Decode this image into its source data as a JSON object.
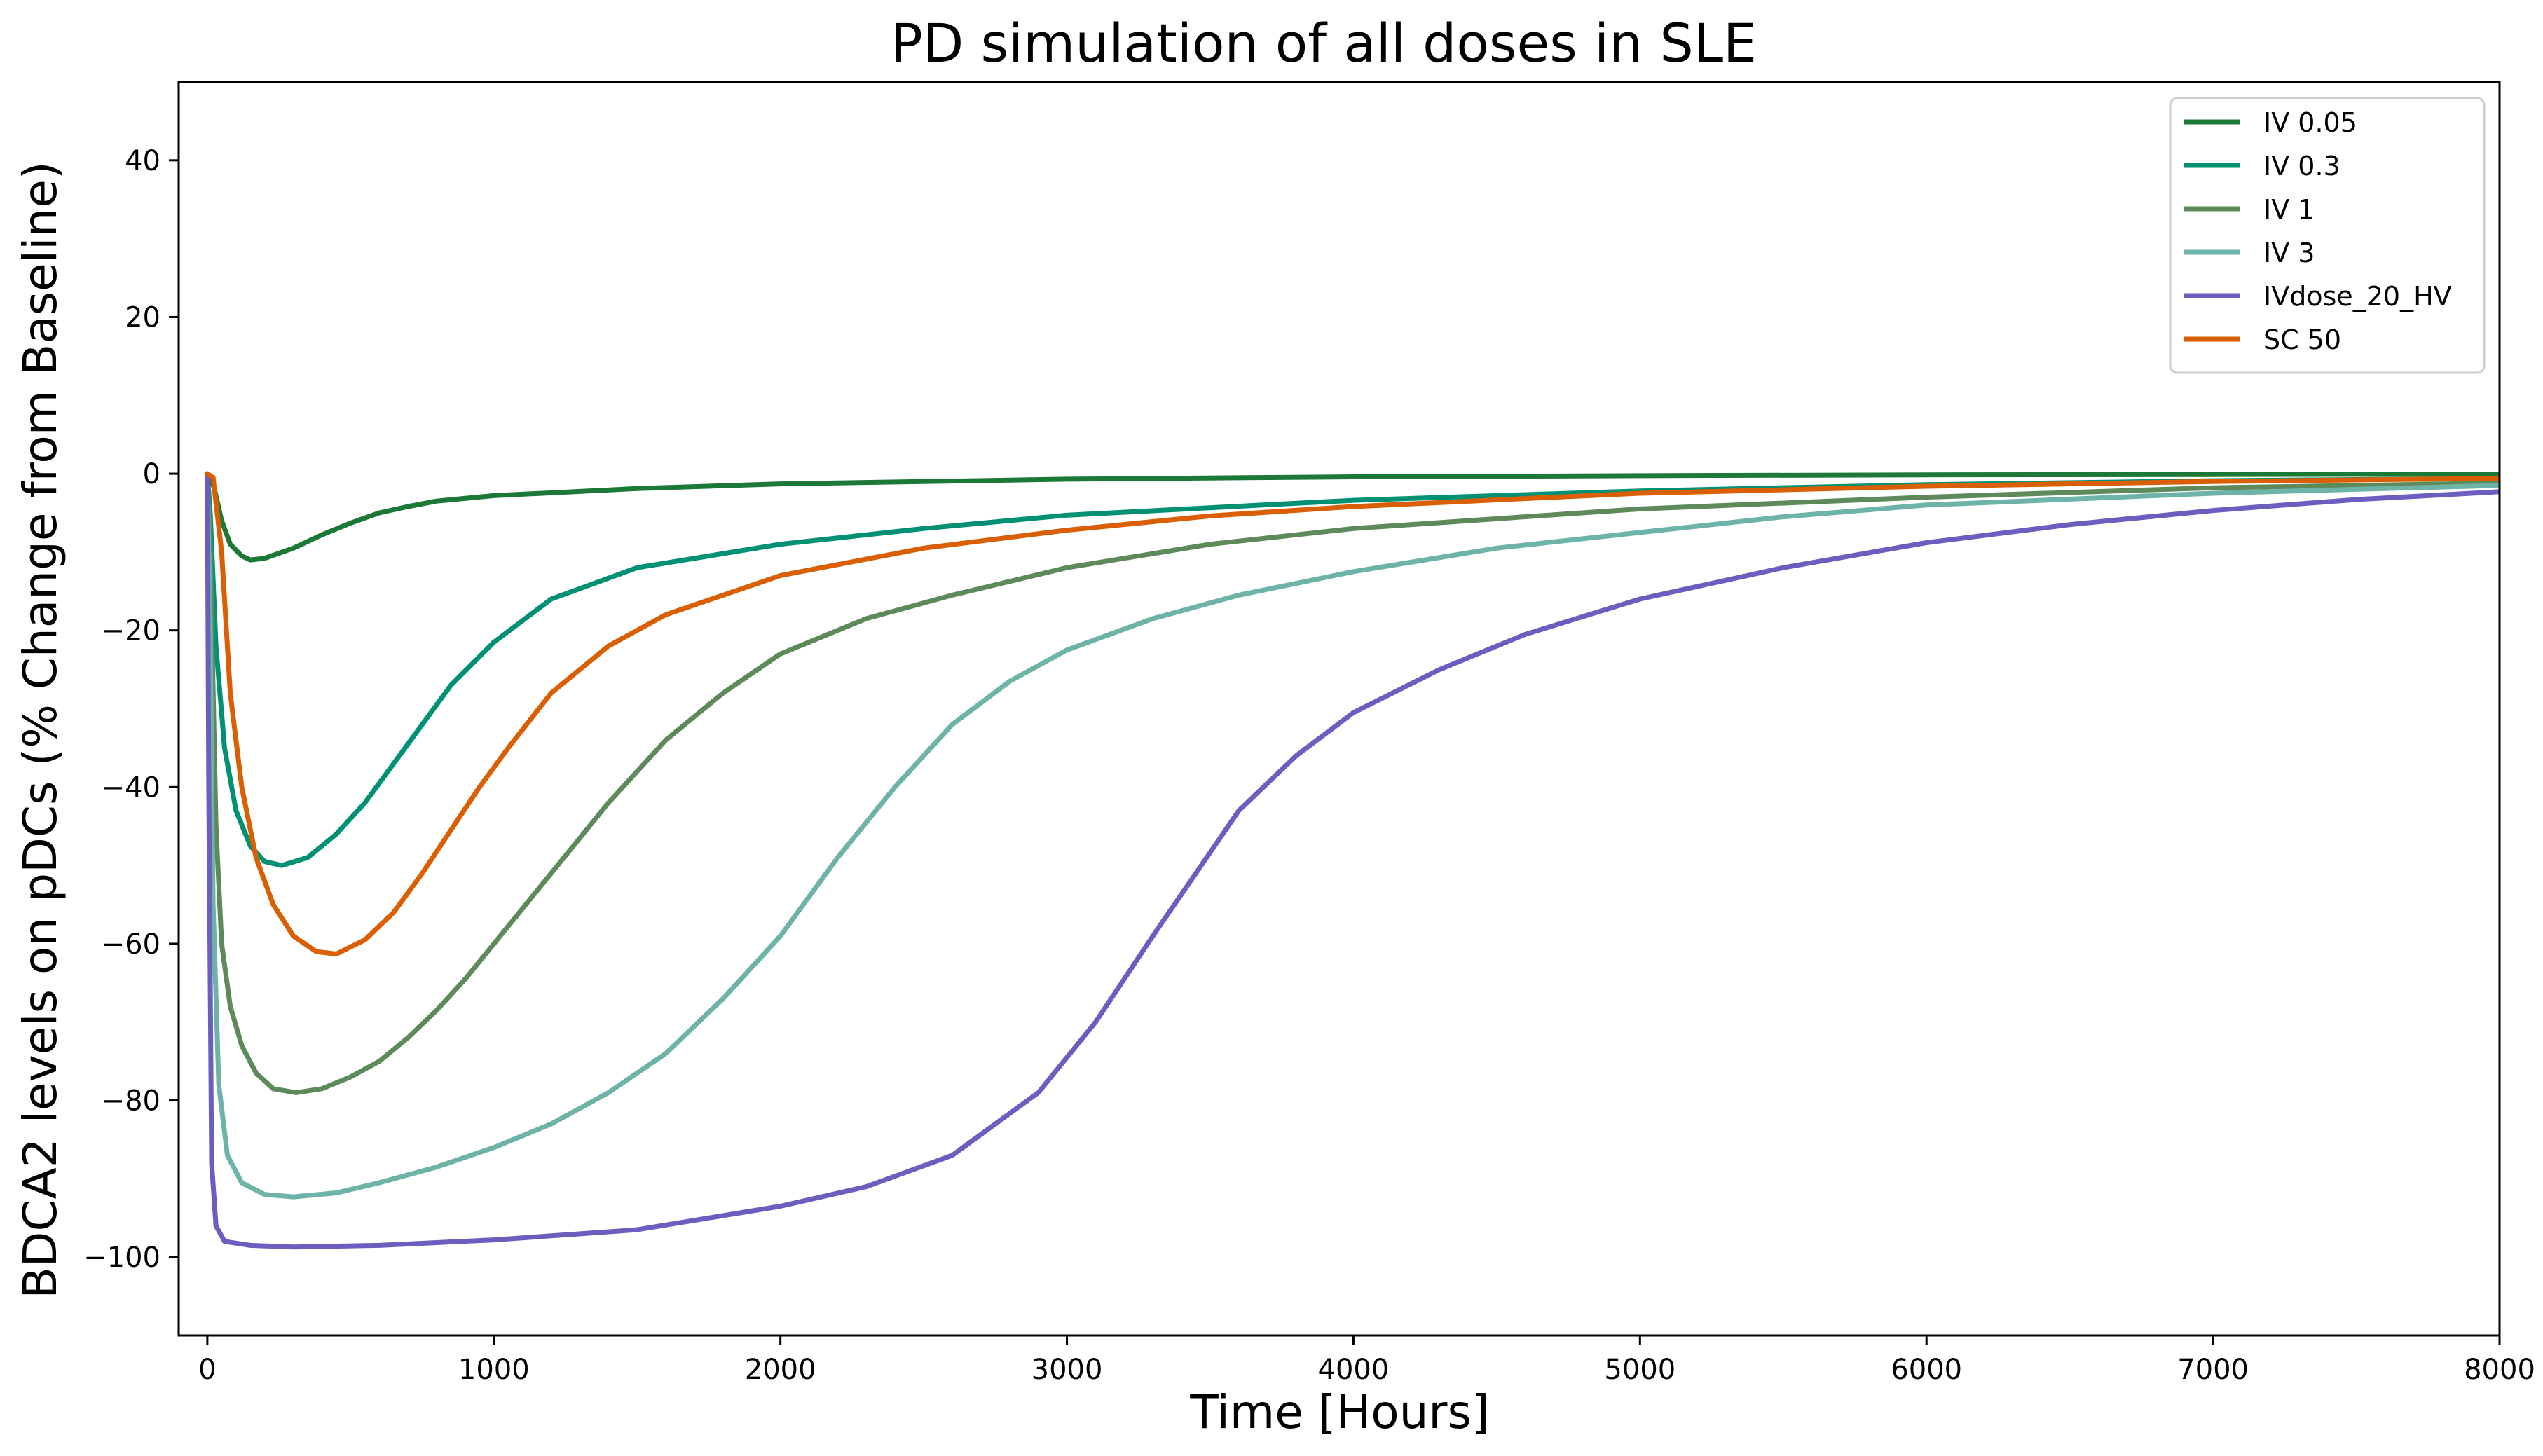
{
  "chart_data": {
    "type": "line",
    "title": "PD simulation of all doses in SLE",
    "xlabel": "Time [Hours]",
    "ylabel": "BDCA2 levels on pDCs (% Change from Baseline)",
    "xlim": [
      -100,
      8000
    ],
    "ylim": [
      -110,
      50
    ],
    "xticks": [
      0,
      1000,
      2000,
      3000,
      4000,
      5000,
      6000,
      7000,
      8000
    ],
    "xtick_labels": [
      "0",
      "1000",
      "2000",
      "3000",
      "4000",
      "5000",
      "6000",
      "7000",
      "8000"
    ],
    "yticks": [
      -100,
      -80,
      -60,
      -40,
      -20,
      0,
      20,
      40
    ],
    "ytick_labels": [
      "−100",
      "−80",
      "−60",
      "−40",
      "−20",
      "0",
      "20",
      "40"
    ],
    "grid": false,
    "legend_position": "top-right",
    "series": [
      {
        "name": "IV 0.05",
        "color": "#1b7837",
        "points": [
          [
            0,
            0
          ],
          [
            10,
            -0.3
          ],
          [
            25,
            -2
          ],
          [
            50,
            -6
          ],
          [
            80,
            -9
          ],
          [
            120,
            -10.5
          ],
          [
            150,
            -11
          ],
          [
            200,
            -10.8
          ],
          [
            300,
            -9.5
          ],
          [
            400,
            -7.8
          ],
          [
            500,
            -6.3
          ],
          [
            600,
            -5
          ],
          [
            700,
            -4.2
          ],
          [
            800,
            -3.5
          ],
          [
            1000,
            -2.8
          ],
          [
            1500,
            -1.9
          ],
          [
            2000,
            -1.3
          ],
          [
            3000,
            -0.7
          ],
          [
            4000,
            -0.4
          ],
          [
            5000,
            -0.25
          ],
          [
            6000,
            -0.15
          ],
          [
            7000,
            -0.1
          ],
          [
            8000,
            -0.05
          ]
        ]
      },
      {
        "name": "IV 0.3",
        "color": "#009175",
        "points": [
          [
            0,
            0
          ],
          [
            10,
            -5
          ],
          [
            30,
            -22
          ],
          [
            60,
            -35
          ],
          [
            100,
            -43
          ],
          [
            150,
            -47.5
          ],
          [
            200,
            -49.5
          ],
          [
            260,
            -50
          ],
          [
            350,
            -49
          ],
          [
            450,
            -46
          ],
          [
            550,
            -42
          ],
          [
            650,
            -37
          ],
          [
            750,
            -32
          ],
          [
            850,
            -27
          ],
          [
            1000,
            -21.5
          ],
          [
            1200,
            -16
          ],
          [
            1500,
            -12
          ],
          [
            2000,
            -9
          ],
          [
            2500,
            -7
          ],
          [
            3000,
            -5.3
          ],
          [
            4000,
            -3.4
          ],
          [
            5000,
            -2.2
          ],
          [
            6000,
            -1.4
          ],
          [
            7000,
            -0.9
          ],
          [
            8000,
            -0.6
          ]
        ]
      },
      {
        "name": "IV 1",
        "color": "#5e8a5b",
        "points": [
          [
            0,
            0
          ],
          [
            10,
            -10
          ],
          [
            30,
            -45
          ],
          [
            50,
            -60
          ],
          [
            80,
            -68
          ],
          [
            120,
            -73
          ],
          [
            170,
            -76.5
          ],
          [
            230,
            -78.5
          ],
          [
            310,
            -79
          ],
          [
            400,
            -78.5
          ],
          [
            500,
            -77
          ],
          [
            600,
            -75
          ],
          [
            700,
            -72
          ],
          [
            800,
            -68.5
          ],
          [
            900,
            -64.5
          ],
          [
            1000,
            -60
          ],
          [
            1200,
            -51
          ],
          [
            1400,
            -42
          ],
          [
            1600,
            -34
          ],
          [
            1800,
            -28
          ],
          [
            2000,
            -23
          ],
          [
            2300,
            -18.5
          ],
          [
            2600,
            -15.5
          ],
          [
            3000,
            -12
          ],
          [
            3500,
            -9
          ],
          [
            4000,
            -7
          ],
          [
            5000,
            -4.5
          ],
          [
            6000,
            -3
          ],
          [
            7000,
            -1.8
          ],
          [
            8000,
            -1.2
          ]
        ]
      },
      {
        "name": "IV 3",
        "color": "#6db3a8",
        "points": [
          [
            0,
            0
          ],
          [
            10,
            -20
          ],
          [
            20,
            -55
          ],
          [
            40,
            -78
          ],
          [
            70,
            -87
          ],
          [
            120,
            -90.5
          ],
          [
            200,
            -92
          ],
          [
            300,
            -92.3
          ],
          [
            450,
            -91.8
          ],
          [
            600,
            -90.5
          ],
          [
            800,
            -88.5
          ],
          [
            1000,
            -86
          ],
          [
            1200,
            -83
          ],
          [
            1400,
            -79
          ],
          [
            1600,
            -74
          ],
          [
            1800,
            -67
          ],
          [
            2000,
            -59
          ],
          [
            2200,
            -49
          ],
          [
            2400,
            -40
          ],
          [
            2600,
            -32
          ],
          [
            2800,
            -26.5
          ],
          [
            3000,
            -22.5
          ],
          [
            3300,
            -18.5
          ],
          [
            3600,
            -15.5
          ],
          [
            4000,
            -12.5
          ],
          [
            4500,
            -9.5
          ],
          [
            5000,
            -7.5
          ],
          [
            5500,
            -5.5
          ],
          [
            6000,
            -4
          ],
          [
            7000,
            -2.5
          ],
          [
            8000,
            -1.5
          ]
        ]
      },
      {
        "name": "IVdose_20_HV",
        "color": "#6a5fbf",
        "points": [
          [
            0,
            0
          ],
          [
            5,
            -40
          ],
          [
            15,
            -88
          ],
          [
            30,
            -96
          ],
          [
            60,
            -98
          ],
          [
            150,
            -98.5
          ],
          [
            300,
            -98.7
          ],
          [
            600,
            -98.5
          ],
          [
            1000,
            -97.8
          ],
          [
            1500,
            -96.5
          ],
          [
            2000,
            -93.5
          ],
          [
            2300,
            -91
          ],
          [
            2600,
            -87
          ],
          [
            2900,
            -79
          ],
          [
            3100,
            -70
          ],
          [
            3300,
            -59
          ],
          [
            3450,
            -51
          ],
          [
            3600,
            -43
          ],
          [
            3800,
            -36
          ],
          [
            4000,
            -30.5
          ],
          [
            4300,
            -25
          ],
          [
            4600,
            -20.5
          ],
          [
            5000,
            -16
          ],
          [
            5500,
            -12
          ],
          [
            6000,
            -8.8
          ],
          [
            6500,
            -6.5
          ],
          [
            7000,
            -4.7
          ],
          [
            7500,
            -3.3
          ],
          [
            8000,
            -2.3
          ]
        ]
      },
      {
        "name": "SC 50",
        "color": "#d95f02",
        "points": [
          [
            0,
            0
          ],
          [
            20,
            -0.5
          ],
          [
            50,
            -10
          ],
          [
            80,
            -28
          ],
          [
            120,
            -40
          ],
          [
            170,
            -49
          ],
          [
            230,
            -55
          ],
          [
            300,
            -59
          ],
          [
            380,
            -61
          ],
          [
            450,
            -61.3
          ],
          [
            550,
            -59.5
          ],
          [
            650,
            -56
          ],
          [
            750,
            -51
          ],
          [
            850,
            -45.5
          ],
          [
            950,
            -40
          ],
          [
            1050,
            -35
          ],
          [
            1200,
            -28
          ],
          [
            1400,
            -22
          ],
          [
            1600,
            -18
          ],
          [
            1800,
            -15.5
          ],
          [
            2000,
            -13
          ],
          [
            2500,
            -9.5
          ],
          [
            3000,
            -7.2
          ],
          [
            3500,
            -5.4
          ],
          [
            4000,
            -4.2
          ],
          [
            5000,
            -2.5
          ],
          [
            6000,
            -1.6
          ],
          [
            7000,
            -1
          ],
          [
            8000,
            -0.6
          ]
        ]
      }
    ]
  }
}
